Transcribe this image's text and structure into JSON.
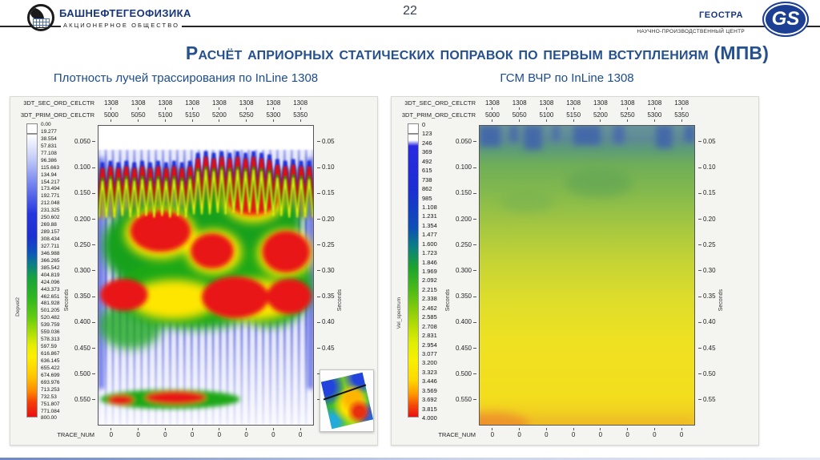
{
  "page_number": "22",
  "header": {
    "org_name": "БАШНЕФТЕГЕОФИЗИКА",
    "org_type": "АКЦИОНЕРНОЕ ОБЩЕСТВО",
    "partner_name": "ГЕОСТРА",
    "partner_type": "НАУЧНО-ПРОИЗВОДСТВЕННЫЙ ЦЕНТР",
    "partner_logo_text": "GS"
  },
  "title": "Расчёт априорных статических поправок по первым вступлениям (МПВ)",
  "colors": {
    "accent_blue": "#26508e",
    "logo_blue": "#17357c",
    "rule_dark": "#262626"
  },
  "panels": [
    {
      "subtitle": "Плотность лучей трассирования по InLine 1308",
      "row1_label": "3DT_SEC_ORD_CELCTR",
      "row1_values": [
        "1308",
        "1308",
        "1308",
        "1308",
        "1308",
        "1308",
        "1308",
        "1308"
      ],
      "row2_label": "3DT_PRIM_ORD_CELCTR",
      "row2_values": [
        "5000",
        "5050",
        "5100",
        "5150",
        "5200",
        "5250",
        "5300",
        "5350"
      ],
      "colorbar_label": "Depvel2",
      "colorbar_ticks": [
        "0.00",
        "19.277",
        "38.554",
        "57.831",
        "77.108",
        "96.386",
        "115.663",
        "134.94",
        "154.217",
        "173.494",
        "192.771",
        "212.048",
        "231.325",
        "250.602",
        "269.88",
        "289.157",
        "308.434",
        "327.711",
        "346.988",
        "366.265",
        "385.542",
        "404.819",
        "424.096",
        "443.373",
        "462.651",
        "481.928",
        "501.205",
        "520.482",
        "539.759",
        "559.036",
        "578.313",
        "597.59",
        "616.867",
        "636.145",
        "655.422",
        "674.699",
        "693.976",
        "713.253",
        "732.53",
        "751.807",
        "771.084",
        "800.00"
      ],
      "y_label": "Seconds",
      "y_ticks_left": [
        "0.050",
        "0.100",
        "0.150",
        "0.200",
        "0.250",
        "0.300",
        "0.350",
        "0.400",
        "0.450",
        "0.500",
        "0.550"
      ],
      "y_ticks_right": [
        "0.05",
        "0.10",
        "0.15",
        "0.20",
        "0.25",
        "0.30",
        "0.35",
        "0.40",
        "0.45",
        "0.50",
        "0.55"
      ],
      "x_label": "TRACE_NUM",
      "x_values": [
        "0",
        "0",
        "0",
        "0",
        "0",
        "0",
        "0",
        "0"
      ]
    },
    {
      "subtitle": "ГСМ ВЧР по InLine 1308",
      "row1_label": "3DT_SEC_ORD_CELCTR",
      "row1_values": [
        "1308",
        "1308",
        "1308",
        "1308",
        "1308",
        "1308",
        "1308",
        "1308"
      ],
      "row2_label": "3DT_PRIM_ORD_CELCTR",
      "row2_values": [
        "5000",
        "5050",
        "5100",
        "5150",
        "5200",
        "5250",
        "5300",
        "5350"
      ],
      "colorbar_label": "Vel_spectrum",
      "colorbar_ticks": [
        "0",
        "123",
        "246",
        "369",
        "492",
        "615",
        "738",
        "862",
        "985",
        "1.108",
        "1.231",
        "1.354",
        "1.477",
        "1.600",
        "1.723",
        "1.846",
        "1.969",
        "2.092",
        "2.215",
        "2.338",
        "2.462",
        "2.585",
        "2.708",
        "2.831",
        "2.954",
        "3.077",
        "3.200",
        "3.323",
        "3.446",
        "3.569",
        "3.692",
        "3.815",
        "4.000"
      ],
      "y_label": "Seconds",
      "y_ticks_left": [
        "0.050",
        "0.100",
        "0.150",
        "0.200",
        "0.250",
        "0.300",
        "0.350",
        "0.400",
        "0.450",
        "0.500",
        "0.550"
      ],
      "y_ticks_right": [
        "0.05",
        "0.10",
        "0.15",
        "0.20",
        "0.25",
        "0.30",
        "0.35",
        "0.40",
        "0.45",
        "0.50",
        "0.55"
      ],
      "x_label": "TRACE_NUM",
      "x_values": [
        "0",
        "0",
        "0",
        "0",
        "0",
        "0",
        "0",
        "0"
      ]
    }
  ],
  "chart_data": [
    {
      "type": "heatmap",
      "title": "Плотность лучей трассирования по InLine 1308",
      "xlabel": "TRACE_NUM",
      "ylabel": "Seconds",
      "x_header_rows": {
        "3DT_SEC_ORD_CELCTR": [
          1308,
          1308,
          1308,
          1308,
          1308,
          1308,
          1308,
          1308
        ],
        "3DT_PRIM_ORD_CELCTR": [
          5000,
          5050,
          5100,
          5150,
          5200,
          5250,
          5300,
          5350
        ]
      },
      "x_tick_values": [
        0,
        0,
        0,
        0,
        0,
        0,
        0,
        0
      ],
      "ylim": [
        0,
        0.6
      ],
      "y_ticks": [
        0.05,
        0.1,
        0.15,
        0.2,
        0.25,
        0.3,
        0.35,
        0.4,
        0.45,
        0.5,
        0.55
      ],
      "colorbar": {
        "label": "Depvel2",
        "min": 0,
        "max": 800,
        "tick_step": 19.277,
        "palette": "white-blue-green-yellow-orange-red"
      },
      "content_summary": "Ray-tracing density field: sharp saw-tooth high-density spikes near 0.05 s, large red (max-density) lobes between 0.15 and 0.4 s, sparse blue streaks below 0.45 s, and a narrow green/red high-density band near 0.55 s on the left half."
    },
    {
      "type": "heatmap",
      "title": "ГСМ ВЧР по InLine 1308",
      "xlabel": "TRACE_NUM",
      "ylabel": "Seconds",
      "x_header_rows": {
        "3DT_SEC_ORD_CELCTR": [
          1308,
          1308,
          1308,
          1308,
          1308,
          1308,
          1308,
          1308
        ],
        "3DT_PRIM_ORD_CELCTR": [
          5000,
          5050,
          5100,
          5150,
          5200,
          5250,
          5300,
          5350
        ]
      },
      "x_tick_values": [
        0,
        0,
        0,
        0,
        0,
        0,
        0,
        0
      ],
      "ylim": [
        0,
        0.6
      ],
      "y_ticks": [
        0.05,
        0.1,
        0.15,
        0.2,
        0.25,
        0.3,
        0.35,
        0.4,
        0.45,
        0.5,
        0.55
      ],
      "colorbar": {
        "label": "Vel_spectrum",
        "min": 0,
        "max": 4000,
        "tick_step": 123,
        "palette": "white-blue-green-yellow-orange-red"
      },
      "content_summary": "Smooth near-surface velocity model (GSM VChR): blue-teal low-velocity patches above ~0.08 s, grading through green to yellow with depth; slight orange increase at the bottom edge, strongest at bottom-left."
    }
  ]
}
